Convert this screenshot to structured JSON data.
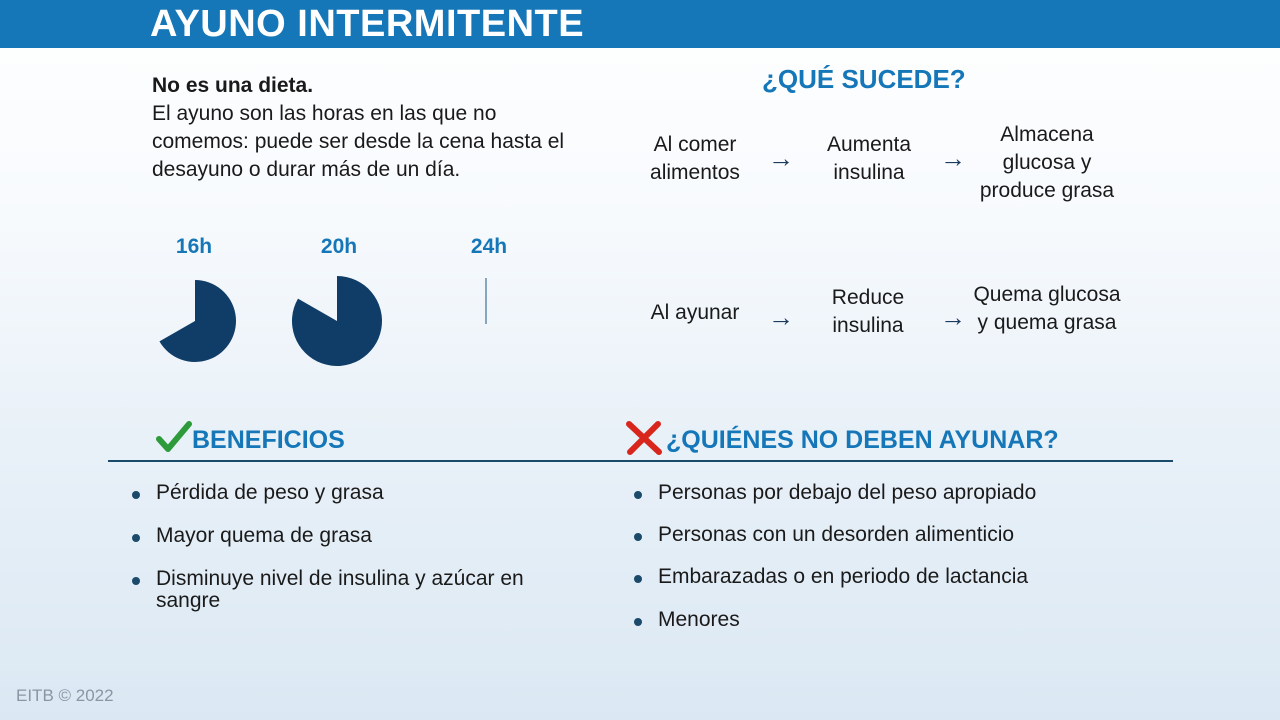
{
  "header": {
    "title": "AYUNO INTERMITENTE"
  },
  "intro": {
    "heading": "No es una dieta.",
    "text": "El ayuno son las horas en las que no comemos: puede ser desde la cena hasta el desayuno o durar más de un día."
  },
  "fasting_clocks": [
    {
      "label": "16h",
      "fraction": 0.667
    },
    {
      "label": "20h",
      "fraction": 0.833
    },
    {
      "label": "24h",
      "fraction": 1.0
    }
  ],
  "what_happens": {
    "title": "¿QUÉ SUCEDE?",
    "eating": {
      "step1": "Al comer alimentos",
      "step2": "Aumenta insulina",
      "step3": "Almacena glucosa y produce grasa"
    },
    "fasting": {
      "step1": "Al ayunar",
      "step2": "Reduce insulina",
      "step3": "Quema glucosa y quema grasa"
    },
    "arrow": "→"
  },
  "benefits": {
    "title": "BENEFICIOS",
    "items": [
      "Pérdida de peso y grasa",
      "Mayor quema de grasa",
      "Disminuye nivel de insulina y azúcar en sangre"
    ]
  },
  "who_should_not": {
    "title": "¿QUIÉNES NO DEBEN AYUNAR?",
    "items": [
      "Personas por debajo del peso apropiado",
      "Personas con un desorden alimenticio",
      "Embarazadas o en periodo de lactancia",
      "Menores"
    ]
  },
  "colors": {
    "brand_blue": "#1577b8",
    "pie_navy": "#0f3d68",
    "check_green": "#2e9b3a",
    "cross_red": "#d9261c"
  },
  "footer": {
    "copyright": "EITB © 2022"
  }
}
